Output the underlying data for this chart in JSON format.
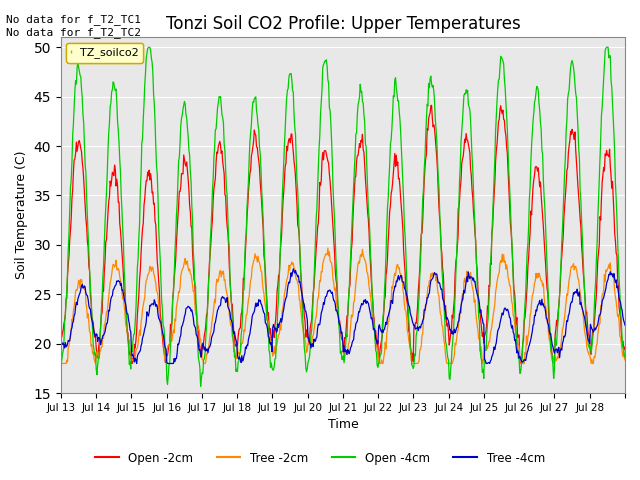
{
  "title": "Tonzi Soil CO2 Profile: Upper Temperatures",
  "ylabel": "Soil Temperature (C)",
  "xlabel": "Time",
  "ylim": [
    15,
    51
  ],
  "yticks": [
    15,
    20,
    25,
    30,
    35,
    40,
    45,
    50
  ],
  "xtick_labels": [
    "Jul 13",
    "Jul 14",
    "Jul 15",
    "Jul 16",
    "Jul 17",
    "Jul 18",
    "Jul 19",
    "Jul 20",
    "Jul 21",
    "Jul 22",
    "Jul 23",
    "Jul 24",
    "Jul 25",
    "Jul 26",
    "Jul 27",
    "Jul 28"
  ],
  "annotation_top_left": "No data for f_T2_TC1\nNo data for f_T2_TC2",
  "legend_box_label": "TZ_soilco2",
  "legend_box_color": "#ffffcc",
  "legend_box_edge": "#ccaa00",
  "series": {
    "open_2cm": {
      "label": "Open -2cm",
      "color": "#ff0000"
    },
    "tree_2cm": {
      "label": "Tree -2cm",
      "color": "#ff8800"
    },
    "open_4cm": {
      "label": "Open -4cm",
      "color": "#00cc00"
    },
    "tree_4cm": {
      "label": "Tree -4cm",
      "color": "#0000cc"
    }
  },
  "bg_color": "#e8e8e8",
  "n_days": 16,
  "points_per_day": 48
}
